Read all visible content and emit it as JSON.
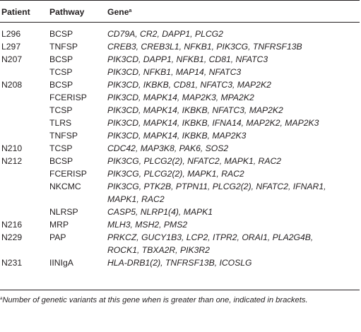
{
  "table": {
    "headers": {
      "patient": "Patient",
      "pathway": "Pathway",
      "gene": "Gene",
      "gene_marker": "a"
    },
    "rows": [
      {
        "patient": "L296",
        "pathway": "BCSP",
        "genes": "CD79A, CR2, DAPP1, PLCG2"
      },
      {
        "patient": "L297",
        "pathway": "TNFSP",
        "genes": "CREB3, CREB3L1, NFKB1, PIK3CG, TNFRSF13B"
      },
      {
        "patient": "N207",
        "pathway": "BCSP",
        "genes": "PIK3CD, DAPP1, NFKB1, CD81, NFATC3"
      },
      {
        "patient": "",
        "pathway": "TCSP",
        "genes": "PIK3CD, NFKB1, MAP14, NFATC3"
      },
      {
        "patient": "N208",
        "pathway": "BCSP",
        "genes": "PIK3CD, IKBKB, CD81, NFATC3, MAP2K2"
      },
      {
        "patient": "",
        "pathway": "FCERISP",
        "genes": "PIK3CD, MAPK14, MAP2K3, MPA2K2"
      },
      {
        "patient": "",
        "pathway": "TCSP",
        "genes": "PIK3CD, MAPK14, IKBKB, NFATC3, MAP2K2"
      },
      {
        "patient": "",
        "pathway": "TLRS",
        "genes": "PIK3CD, MAPK14, IKBKB, IFNA14, MAP2K2, MAP2K3"
      },
      {
        "patient": "",
        "pathway": "TNFSP",
        "genes": "PIK3CD, MAPK14, IKBKB, MAP2K3"
      },
      {
        "patient": "N210",
        "pathway": "TCSP",
        "genes": "CDC42, MAP3K8, PAK6, SOS2"
      },
      {
        "patient": "N212",
        "pathway": "BCSP",
        "genes": "PIK3CG, PLCG2(2), NFATC2, MAPK1, RAC2"
      },
      {
        "patient": "",
        "pathway": "FCERISP",
        "genes": "PIK3CG, PLCG2(2), MAPK1, RAC2"
      },
      {
        "patient": "",
        "pathway": "NKCMC",
        "genes": "PIK3CG, PTK2B, PTPN11, PLCG2(2), NFATC2, IFNAR1,"
      },
      {
        "patient": "",
        "pathway": "",
        "genes": "MAPK1, RAC2"
      },
      {
        "patient": "",
        "pathway": "NLRSP",
        "genes": "CASP5, NLRP1(4), MAPK1"
      },
      {
        "patient": "N216",
        "pathway": "MRP",
        "genes": "MLH3, MSH2, PMS2"
      },
      {
        "patient": "N229",
        "pathway": "PAP",
        "genes": "PRKCZ, GUCY1B3, LCP2, ITPR2, ORAI1, PLA2G4B,"
      },
      {
        "patient": "",
        "pathway": "",
        "genes": "ROCK1, TBXA2R, PIK3R2"
      },
      {
        "patient": "N231",
        "pathway": "IINIgA",
        "genes": "HLA-DRB1(2), TNFRSF13B, ICOSLG"
      }
    ]
  },
  "footnote": {
    "marker": "a",
    "text": "Number of genetic variants at this gene when is greater than one, indicated in brackets."
  }
}
